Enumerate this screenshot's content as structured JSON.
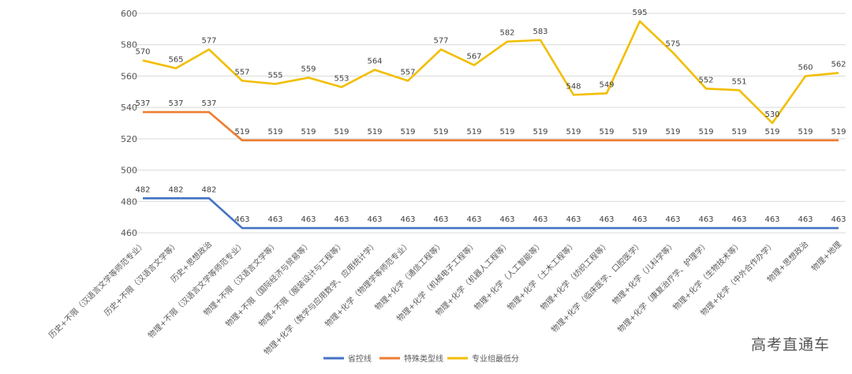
{
  "chart_data": {
    "type": "line",
    "title": "",
    "xlabel": "",
    "ylabel": "",
    "ylim": [
      455,
      600
    ],
    "yticks": [
      460,
      480,
      500,
      520,
      540,
      560,
      580,
      600
    ],
    "grid": true,
    "legend_position": "bottom",
    "categories": [
      "历史+不限（汉语言文学等师范专业）",
      "历史+不限（汉语言文学等）",
      "历史+思想政治",
      "物理+不限（汉语言文学等师范专业）",
      "物理+不限（汉语言文学等）",
      "物理+不限（国际经济与贸易等）",
      "物理+不限（服装设计与工程等）",
      "物理+化学（数学与应用数学、应用统计学）",
      "物理+化学（物理学等师范专业）",
      "物理+化学（通信工程等）",
      "物理+化学（机械电子工程等）",
      "物理+化学（机器人工程等）",
      "物理+化学（人工智能等）",
      "物理+化学（土木工程等）",
      "物理+化学（纺织工程等）",
      "物理+化学（临床医学、口腔医学）",
      "物理+化学（儿科学等）",
      "物理+化学（康复治疗学、护理学）",
      "物理+化学（生物技术等）",
      "物理+化学（中外合作办学）",
      "物理+思想政治",
      "物理+地理"
    ],
    "series": [
      {
        "name": "省控线",
        "color": "#4472C4",
        "values": [
          482,
          482,
          482,
          463,
          463,
          463,
          463,
          463,
          463,
          463,
          463,
          463,
          463,
          463,
          463,
          463,
          463,
          463,
          463,
          463,
          463,
          463
        ]
      },
      {
        "name": "特殊类型线",
        "color": "#ED7D31",
        "values": [
          537,
          537,
          537,
          519,
          519,
          519,
          519,
          519,
          519,
          519,
          519,
          519,
          519,
          519,
          519,
          519,
          519,
          519,
          519,
          519,
          519,
          519
        ]
      },
      {
        "name": "专业组最低分",
        "color": "#F2BE00",
        "values": [
          570,
          565,
          577,
          557,
          555,
          559,
          553,
          564,
          557,
          577,
          567,
          582,
          583,
          548,
          549,
          595,
          575,
          552,
          551,
          530,
          560,
          562
        ]
      }
    ]
  },
  "watermark": "高考直通车"
}
